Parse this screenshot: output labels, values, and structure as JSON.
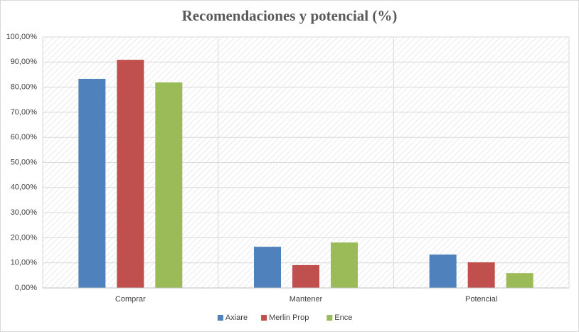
{
  "chart_data": {
    "type": "bar",
    "title": "Recomendaciones y potencial (%)",
    "categories": [
      "Comprar",
      "Mantener",
      "Potencial"
    ],
    "series": [
      {
        "name": "Axiare",
        "color": "#4f81bd",
        "values": [
          83.3,
          16.4,
          13.3
        ]
      },
      {
        "name": "Merlin Prop",
        "color": "#c0504d",
        "values": [
          90.9,
          9.1,
          10.2
        ]
      },
      {
        "name": "Ence",
        "color": "#9bbb59",
        "values": [
          81.9,
          18.1,
          5.9
        ]
      }
    ],
    "ylim": [
      0,
      100
    ],
    "yticks": [
      {
        "value": 0,
        "label": "0,00%"
      },
      {
        "value": 10,
        "label": "10,00%"
      },
      {
        "value": 20,
        "label": "20,00%"
      },
      {
        "value": 30,
        "label": "30,00%"
      },
      {
        "value": 40,
        "label": "40,00%"
      },
      {
        "value": 50,
        "label": "50,00%"
      },
      {
        "value": 60,
        "label": "60,00%"
      },
      {
        "value": 70,
        "label": "70,00%"
      },
      {
        "value": 80,
        "label": "80,00%"
      },
      {
        "value": 90,
        "label": "90,00%"
      },
      {
        "value": 100,
        "label": "100,00%"
      }
    ],
    "grid": true,
    "legend": "bottom"
  }
}
